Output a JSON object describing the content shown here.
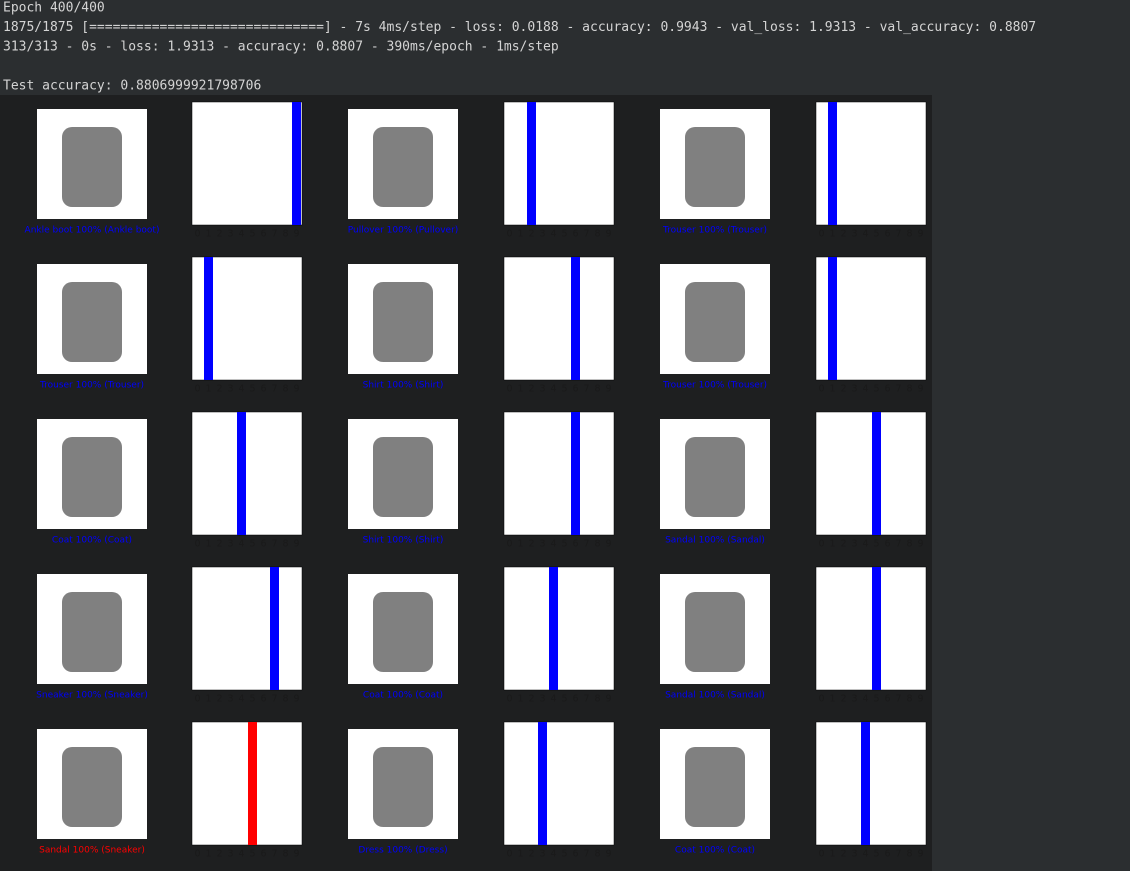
{
  "log": {
    "lines": [
      "Epoch 400/400",
      "1875/1875 [==============================] - 7s 4ms/step - loss: 0.0188 - accuracy: 0.9943 - val_loss: 1.9313 - val_accuracy: 0.8807",
      "313/313 - 0s - loss: 1.9313 - accuracy: 0.8807 - 390ms/epoch - 1ms/step"
    ],
    "result": "Test accuracy: 0.8806999921798706"
  },
  "figure": {
    "type": "bar",
    "xticks": [
      0,
      1,
      2,
      3,
      4,
      5,
      6,
      7,
      8,
      9
    ],
    "ylim": [
      0,
      1
    ],
    "panels": [
      {
        "caption": "Ankle boot 100% (Ankle boot)",
        "caption_color": "#0000ff",
        "color": "#0000ff",
        "values": [
          0,
          0,
          0,
          0,
          0,
          0,
          0,
          0,
          0,
          1
        ]
      },
      {
        "caption": "Pullover 100% (Pullover)",
        "caption_color": "#0000ff",
        "color": "#0000ff",
        "values": [
          0,
          0,
          1,
          0,
          0,
          0,
          0,
          0,
          0,
          0
        ]
      },
      {
        "caption": "Trouser 100% (Trouser)",
        "caption_color": "#0000ff",
        "color": "#0000ff",
        "values": [
          0,
          1,
          0,
          0,
          0,
          0,
          0,
          0,
          0,
          0
        ]
      },
      {
        "caption": "Trouser 100% (Trouser)",
        "caption_color": "#0000ff",
        "color": "#0000ff",
        "values": [
          0,
          1,
          0,
          0,
          0,
          0,
          0,
          0,
          0,
          0
        ]
      },
      {
        "caption": "Shirt 100% (Shirt)",
        "caption_color": "#0000ff",
        "color": "#0000ff",
        "values": [
          0,
          0,
          0,
          0,
          0,
          0,
          1,
          0,
          0,
          0
        ]
      },
      {
        "caption": "Trouser 100% (Trouser)",
        "caption_color": "#0000ff",
        "color": "#0000ff",
        "values": [
          0,
          1,
          0,
          0,
          0,
          0,
          0,
          0,
          0,
          0
        ]
      },
      {
        "caption": "Coat 100% (Coat)",
        "caption_color": "#0000ff",
        "color": "#0000ff",
        "values": [
          0,
          0,
          0,
          0,
          1,
          0,
          0,
          0,
          0,
          0
        ]
      },
      {
        "caption": "Shirt 100% (Shirt)",
        "caption_color": "#0000ff",
        "color": "#0000ff",
        "values": [
          0,
          0,
          0,
          0,
          0,
          0,
          1,
          0,
          0,
          0
        ]
      },
      {
        "caption": "Sandal 100% (Sandal)",
        "caption_color": "#0000ff",
        "color": "#0000ff",
        "values": [
          0,
          0,
          0,
          0,
          0,
          1,
          0,
          0,
          0,
          0
        ]
      },
      {
        "caption": "Sneaker 100% (Sneaker)",
        "caption_color": "#0000ff",
        "color": "#0000ff",
        "values": [
          0,
          0,
          0,
          0,
          0,
          0,
          0,
          1,
          0,
          0
        ]
      },
      {
        "caption": "Coat 100% (Coat)",
        "caption_color": "#0000ff",
        "color": "#0000ff",
        "values": [
          0,
          0,
          0,
          0,
          1,
          0,
          0,
          0,
          0,
          0
        ]
      },
      {
        "caption": "Sandal 100% (Sandal)",
        "caption_color": "#0000ff",
        "color": "#0000ff",
        "values": [
          0,
          0,
          0,
          0,
          0,
          1,
          0,
          0,
          0,
          0
        ]
      },
      {
        "caption": "Sandal 100% (Sneaker)",
        "caption_color": "#ff0000",
        "color": "#ff0000",
        "values": [
          0,
          0,
          0,
          0,
          0,
          1,
          0,
          0,
          0,
          0
        ]
      },
      {
        "caption": "Dress 100% (Dress)",
        "caption_color": "#0000ff",
        "color": "#0000ff",
        "values": [
          0,
          0,
          0,
          1,
          0,
          0,
          0,
          0,
          0,
          0
        ]
      },
      {
        "caption": "Coat 100% (Coat)",
        "caption_color": "#0000ff",
        "color": "#0000ff",
        "values": [
          0,
          0,
          0,
          0,
          1,
          0,
          0,
          0,
          0,
          0
        ]
      }
    ]
  }
}
